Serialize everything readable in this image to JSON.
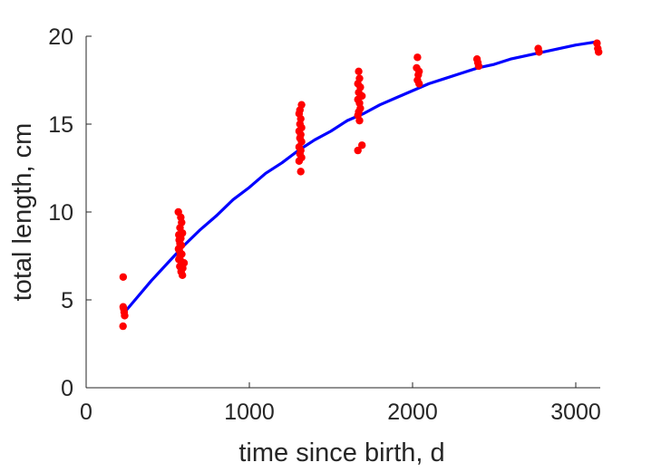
{
  "chart_data": {
    "type": "scatter",
    "title": "",
    "xlabel": "time since birth, d",
    "ylabel": "total length, cm",
    "xlim": [
      0,
      3150
    ],
    "ylim": [
      0,
      20
    ],
    "xticks": [
      0,
      1000,
      2000,
      3000
    ],
    "yticks": [
      0,
      5,
      10,
      15,
      20
    ],
    "grid": false,
    "legend": "none",
    "colors": {
      "points": "#ff0000",
      "fit_line": "#0000ff",
      "axis": "#262626"
    },
    "series": [
      {
        "kind": "points",
        "points": [
          [
            227,
            6.3
          ],
          [
            227,
            4.6
          ],
          [
            230,
            4.5
          ],
          [
            233,
            4.3
          ],
          [
            236,
            4.1
          ],
          [
            226,
            3.5
          ],
          [
            565,
            10.0
          ],
          [
            580,
            9.7
          ],
          [
            585,
            9.4
          ],
          [
            575,
            9.1
          ],
          [
            590,
            8.8
          ],
          [
            568,
            8.7
          ],
          [
            580,
            8.5
          ],
          [
            570,
            8.4
          ],
          [
            575,
            8.2
          ],
          [
            583,
            8.1
          ],
          [
            566,
            7.9
          ],
          [
            571,
            7.8
          ],
          [
            586,
            7.6
          ],
          [
            576,
            7.5
          ],
          [
            568,
            7.3
          ],
          [
            581,
            7.2
          ],
          [
            600,
            7.1
          ],
          [
            584,
            7.0
          ],
          [
            574,
            6.9
          ],
          [
            592,
            6.8
          ],
          [
            582,
            6.6
          ],
          [
            590,
            6.4
          ],
          [
            1310,
            15.8
          ],
          [
            1320,
            16.1
          ],
          [
            1305,
            15.6
          ],
          [
            1315,
            15.3
          ],
          [
            1310,
            15.0
          ],
          [
            1320,
            14.8
          ],
          [
            1305,
            14.6
          ],
          [
            1315,
            14.4
          ],
          [
            1310,
            14.2
          ],
          [
            1320,
            14.0
          ],
          [
            1305,
            13.7
          ],
          [
            1315,
            13.5
          ],
          [
            1310,
            13.3
          ],
          [
            1320,
            13.1
          ],
          [
            1305,
            12.9
          ],
          [
            1315,
            12.3
          ],
          [
            1670,
            18.0
          ],
          [
            1675,
            17.6
          ],
          [
            1665,
            17.3
          ],
          [
            1680,
            17.1
          ],
          [
            1670,
            16.8
          ],
          [
            1690,
            16.6
          ],
          [
            1665,
            16.4
          ],
          [
            1675,
            16.2
          ],
          [
            1680,
            15.9
          ],
          [
            1670,
            15.7
          ],
          [
            1665,
            15.5
          ],
          [
            1675,
            15.2
          ],
          [
            1690,
            13.8
          ],
          [
            1665,
            13.5
          ],
          [
            2030,
            18.8
          ],
          [
            2025,
            18.2
          ],
          [
            2040,
            18.0
          ],
          [
            2035,
            17.8
          ],
          [
            2030,
            17.5
          ],
          [
            2040,
            17.3
          ],
          [
            2395,
            18.7
          ],
          [
            2400,
            18.5
          ],
          [
            2405,
            18.3
          ],
          [
            2770,
            19.3
          ],
          [
            2775,
            19.1
          ],
          [
            3130,
            19.6
          ],
          [
            3135,
            19.3
          ],
          [
            3140,
            19.1
          ]
        ]
      },
      {
        "kind": "fit",
        "points": [
          [
            227,
            4.2
          ],
          [
            300,
            5.0
          ],
          [
            400,
            6.1
          ],
          [
            500,
            7.1
          ],
          [
            600,
            8.1
          ],
          [
            700,
            9.0
          ],
          [
            800,
            9.8
          ],
          [
            900,
            10.7
          ],
          [
            1000,
            11.4
          ],
          [
            1100,
            12.2
          ],
          [
            1200,
            12.8
          ],
          [
            1300,
            13.5
          ],
          [
            1400,
            14.1
          ],
          [
            1500,
            14.6
          ],
          [
            1600,
            15.2
          ],
          [
            1700,
            15.6
          ],
          [
            1800,
            16.1
          ],
          [
            1900,
            16.5
          ],
          [
            2000,
            16.9
          ],
          [
            2100,
            17.3
          ],
          [
            2200,
            17.6
          ],
          [
            2300,
            17.9
          ],
          [
            2400,
            18.2
          ],
          [
            2500,
            18.4
          ],
          [
            2600,
            18.7
          ],
          [
            2700,
            18.9
          ],
          [
            2800,
            19.1
          ],
          [
            2900,
            19.3
          ],
          [
            3000,
            19.5
          ],
          [
            3140,
            19.7
          ]
        ]
      }
    ]
  }
}
